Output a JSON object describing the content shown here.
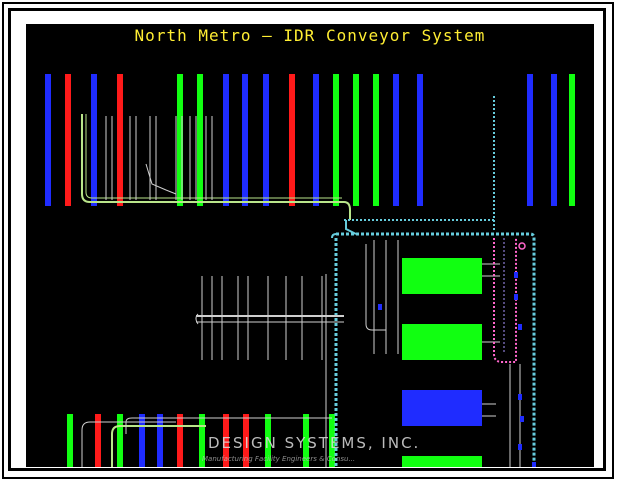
{
  "drawing": {
    "title": "North Metro — IDR Conveyor System",
    "watermark_company": "DESIGN SYSTEMS, INC.",
    "watermark_subtitle": "Manufacturing Facility Engineers & Consu..."
  },
  "colors": {
    "background": "#000000",
    "title": "#ffee33",
    "blue": "#1f2cff",
    "red": "#ff1a1a",
    "green": "#11ff11",
    "conveyor_cyan": "#66ccdd",
    "conveyor_green": "#b9e58a",
    "conveyor_gray": "#cfcfcf",
    "conveyor_pink": "#ff66cc"
  },
  "top_bar_colors": [
    "blue",
    "red",
    "blue",
    "red",
    "green",
    "green",
    "blue",
    "blue",
    "blue",
    "red",
    "blue",
    "green",
    "green",
    "green",
    "blue",
    "blue",
    "blue",
    "blue",
    "green"
  ],
  "bottom_bar_colors": [
    "green",
    "red",
    "green",
    "blue",
    "blue",
    "red",
    "green",
    "red",
    "red",
    "green",
    "green",
    "green"
  ],
  "blocks": [
    "green",
    "green",
    "blue",
    "green"
  ]
}
